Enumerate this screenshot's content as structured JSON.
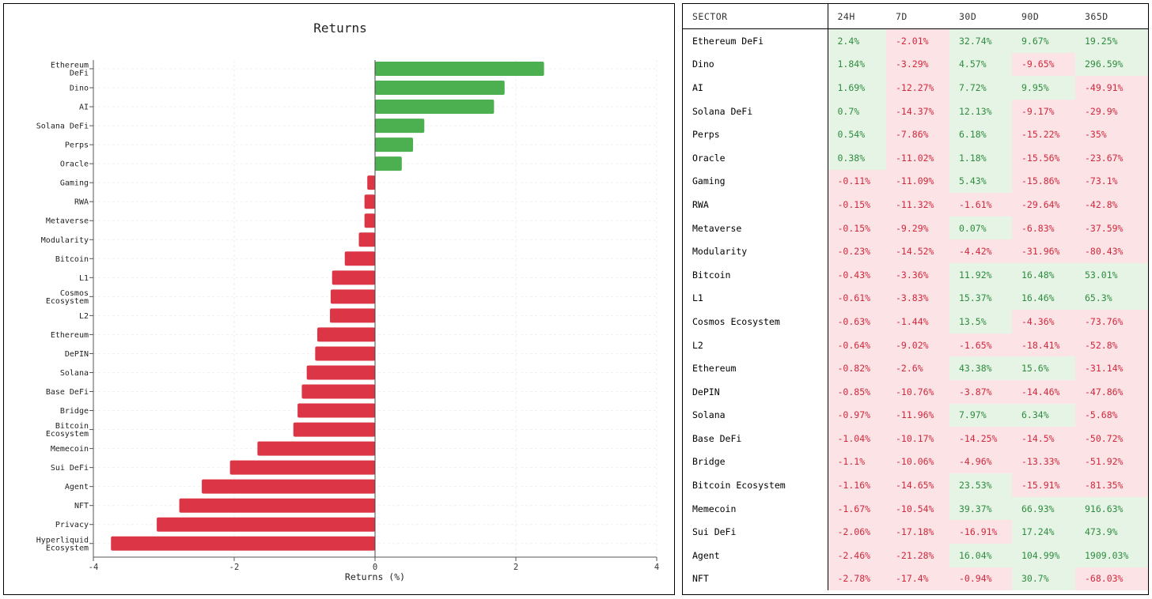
{
  "chart_data": {
    "type": "bar",
    "orientation": "horizontal",
    "title": "Returns",
    "xlabel": "Returns (%)",
    "ylabel": "",
    "xlim": [
      -4,
      4
    ],
    "xticks": [
      -4,
      -2,
      0,
      2,
      4
    ],
    "grid": true,
    "legend": "none",
    "categories": [
      "Ethereum DeFi",
      "Dino",
      "AI",
      "Solana DeFi",
      "Perps",
      "Oracle",
      "Gaming",
      "RWA",
      "Metaverse",
      "Modularity",
      "Bitcoin",
      "L1",
      "Cosmos Ecosystem",
      "L2",
      "Ethereum",
      "DePIN",
      "Solana",
      "Base DeFi",
      "Bridge",
      "Bitcoin Ecosystem",
      "Memecoin",
      "Sui DeFi",
      "Agent",
      "NFT",
      "Privacy",
      "Hyperliquid Ecosystem"
    ],
    "tick_labels": [
      [
        "Ethereum",
        "DeFi"
      ],
      [
        "Dino"
      ],
      [
        "AI"
      ],
      [
        "Solana DeFi"
      ],
      [
        "Perps"
      ],
      [
        "Oracle"
      ],
      [
        "Gaming"
      ],
      [
        "RWA"
      ],
      [
        "Metaverse"
      ],
      [
        "Modularity"
      ],
      [
        "Bitcoin"
      ],
      [
        "L1"
      ],
      [
        "Cosmos",
        "Ecosystem"
      ],
      [
        "L2"
      ],
      [
        "Ethereum"
      ],
      [
        "DePIN"
      ],
      [
        "Solana"
      ],
      [
        "Base DeFi"
      ],
      [
        "Bridge"
      ],
      [
        "Bitcoin",
        "Ecosystem"
      ],
      [
        "Memecoin"
      ],
      [
        "Sui DeFi"
      ],
      [
        "Agent"
      ],
      [
        "NFT"
      ],
      [
        "Privacy"
      ],
      [
        "Hyperliquid",
        "Ecosystem"
      ]
    ],
    "values": [
      2.4,
      1.84,
      1.69,
      0.7,
      0.54,
      0.38,
      -0.11,
      -0.15,
      -0.15,
      -0.23,
      -0.43,
      -0.61,
      -0.63,
      -0.64,
      -0.82,
      -0.85,
      -0.97,
      -1.04,
      -1.1,
      -1.16,
      -1.67,
      -2.06,
      -2.46,
      -2.78,
      -3.1,
      -3.75
    ],
    "colors": {
      "positive": "#4caf50",
      "negative": "#dc3545"
    }
  },
  "table": {
    "headers": [
      "SECTOR",
      "24H",
      "7D",
      "30D",
      "90D",
      "365D"
    ],
    "rows": [
      [
        "Ethereum DeFi",
        "2.4%",
        "-2.01%",
        "32.74%",
        "9.67%",
        "19.25%"
      ],
      [
        "Dino",
        "1.84%",
        "-3.29%",
        "4.57%",
        "-9.65%",
        "296.59%"
      ],
      [
        "AI",
        "1.69%",
        "-12.27%",
        "7.72%",
        "9.95%",
        "-49.91%"
      ],
      [
        "Solana DeFi",
        "0.7%",
        "-14.37%",
        "12.13%",
        "-9.17%",
        "-29.9%"
      ],
      [
        "Perps",
        "0.54%",
        "-7.86%",
        "6.18%",
        "-15.22%",
        "-35%"
      ],
      [
        "Oracle",
        "0.38%",
        "-11.02%",
        "1.18%",
        "-15.56%",
        "-23.67%"
      ],
      [
        "Gaming",
        "-0.11%",
        "-11.09%",
        "5.43%",
        "-15.86%",
        "-73.1%"
      ],
      [
        "RWA",
        "-0.15%",
        "-11.32%",
        "-1.61%",
        "-29.64%",
        "-42.8%"
      ],
      [
        "Metaverse",
        "-0.15%",
        "-9.29%",
        "0.07%",
        "-6.83%",
        "-37.59%"
      ],
      [
        "Modularity",
        "-0.23%",
        "-14.52%",
        "-4.42%",
        "-31.96%",
        "-80.43%"
      ],
      [
        "Bitcoin",
        "-0.43%",
        "-3.36%",
        "11.92%",
        "16.48%",
        "53.01%"
      ],
      [
        "L1",
        "-0.61%",
        "-3.83%",
        "15.37%",
        "16.46%",
        "65.3%"
      ],
      [
        "Cosmos Ecosystem",
        "-0.63%",
        "-1.44%",
        "13.5%",
        "-4.36%",
        "-73.76%"
      ],
      [
        "L2",
        "-0.64%",
        "-9.02%",
        "-1.65%",
        "-18.41%",
        "-52.8%"
      ],
      [
        "Ethereum",
        "-0.82%",
        "-2.6%",
        "43.38%",
        "15.6%",
        "-31.14%"
      ],
      [
        "DePIN",
        "-0.85%",
        "-10.76%",
        "-3.87%",
        "-14.46%",
        "-47.86%"
      ],
      [
        "Solana",
        "-0.97%",
        "-11.96%",
        "7.97%",
        "6.34%",
        "-5.68%"
      ],
      [
        "Base DeFi",
        "-1.04%",
        "-10.17%",
        "-14.25%",
        "-14.5%",
        "-50.72%"
      ],
      [
        "Bridge",
        "-1.1%",
        "-10.06%",
        "-4.96%",
        "-13.33%",
        "-51.92%"
      ],
      [
        "Bitcoin Ecosystem",
        "-1.16%",
        "-14.65%",
        "23.53%",
        "-15.91%",
        "-81.35%"
      ],
      [
        "Memecoin",
        "-1.67%",
        "-10.54%",
        "39.37%",
        "66.93%",
        "916.63%"
      ],
      [
        "Sui DeFi",
        "-2.06%",
        "-17.18%",
        "-16.91%",
        "17.24%",
        "473.9%"
      ],
      [
        "Agent",
        "-2.46%",
        "-21.28%",
        "16.04%",
        "104.99%",
        "1909.03%"
      ],
      [
        "NFT",
        "-2.78%",
        "-17.4%",
        "-0.94%",
        "30.7%",
        "-68.03%"
      ]
    ]
  }
}
